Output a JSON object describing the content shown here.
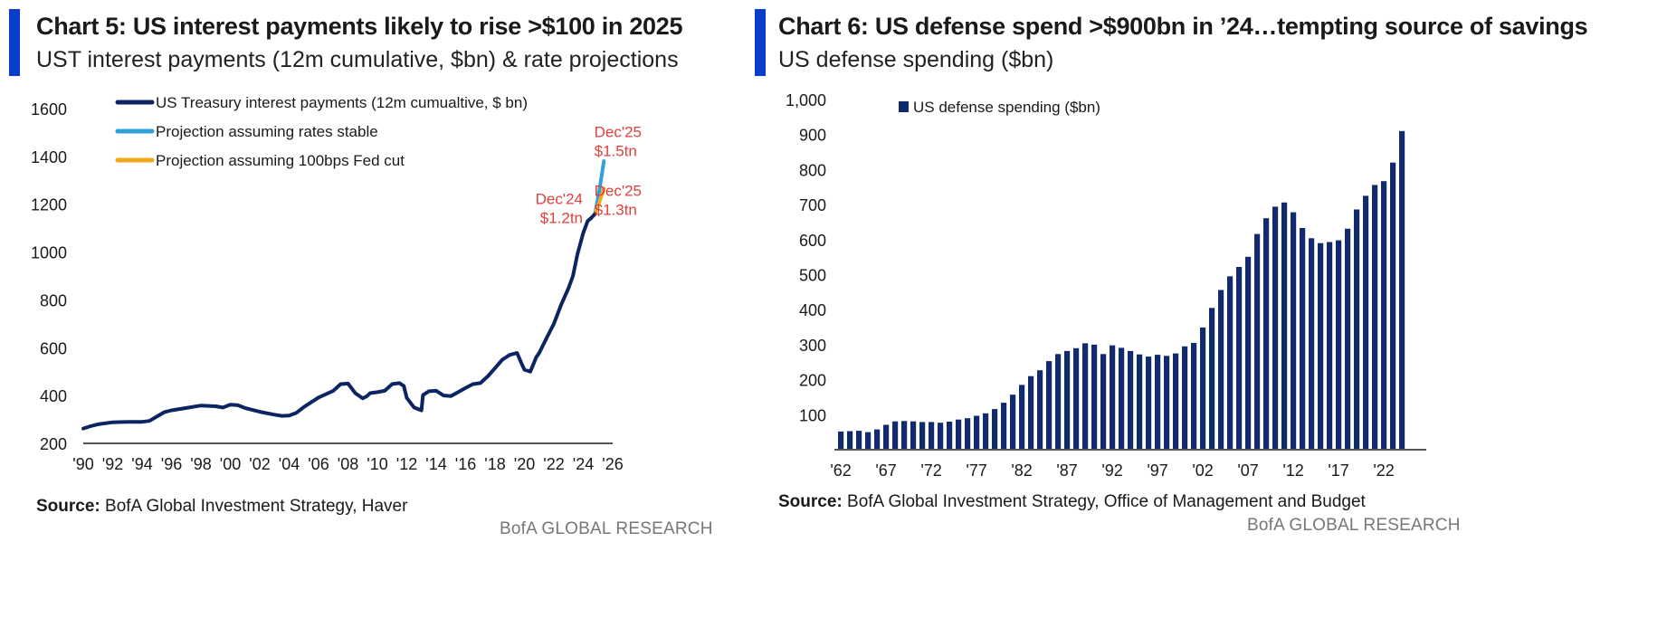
{
  "left": {
    "title": "Chart 5: US interest payments likely to rise >$100 in 2025",
    "subtitle": "UST interest payments (12m cumulative, $bn) & rate projections",
    "source_label": "Source:",
    "source_text": " BofA Global Investment Strategy, Haver",
    "brand": "BofA GLOBAL RESEARCH"
  },
  "right": {
    "title": "Chart 6: US defense spend >$900bn in ’24…tempting source of savings",
    "subtitle": "US defense spending ($bn)",
    "source_label": "Source:",
    "source_text": " BofA Global Investment Strategy, Office of Management and Budget",
    "brand": "BofA GLOBAL RESEARCH"
  },
  "chart_data": [
    {
      "type": "line",
      "ylim": [
        200,
        1600
      ],
      "yticks": [
        200,
        400,
        600,
        800,
        1000,
        1200,
        1400,
        1600
      ],
      "xlim": [
        1990,
        2026
      ],
      "xtick_labels": [
        "'90",
        "'92",
        "'94",
        "'96",
        "'98",
        "'00",
        "'02",
        "'04",
        "'06",
        "'08",
        "'10",
        "'12",
        "'14",
        "'16",
        "'18",
        "'20",
        "'22",
        "'24",
        "'26"
      ],
      "legend_position": "top-left",
      "colors": {
        "actual": "#0c2461",
        "stable": "#2fa1d6",
        "cut": "#f2a81d",
        "annotation": "#e0403a"
      },
      "series": [
        {
          "name": "US Treasury interest payments (12m cumualtive, $ bn)",
          "points": [
            [
              1990,
              262
            ],
            [
              1990.5,
              272
            ],
            [
              1991,
              280
            ],
            [
              1992,
              288
            ],
            [
              1993,
              290
            ],
            [
              1994,
              290
            ],
            [
              1994.5,
              294
            ],
            [
              1995,
              312
            ],
            [
              1995.5,
              330
            ],
            [
              1996,
              338
            ],
            [
              1997,
              348
            ],
            [
              1998,
              358
            ],
            [
              1999,
              355
            ],
            [
              1999.5,
              350
            ],
            [
              2000,
              362
            ],
            [
              2000.5,
              360
            ],
            [
              2001,
              348
            ],
            [
              2002,
              332
            ],
            [
              2003,
              320
            ],
            [
              2003.5,
              315
            ],
            [
              2004,
              316
            ],
            [
              2004.5,
              328
            ],
            [
              2005,
              352
            ],
            [
              2006,
              392
            ],
            [
              2007,
              420
            ],
            [
              2007.5,
              448
            ],
            [
              2008,
              450
            ],
            [
              2008.5,
              410
            ],
            [
              2009,
              388
            ],
            [
              2009.3,
              398
            ],
            [
              2009.5,
              410
            ],
            [
              2010,
              414
            ],
            [
              2010.5,
              420
            ],
            [
              2011,
              448
            ],
            [
              2011.5,
              452
            ],
            [
              2011.8,
              440
            ],
            [
              2012,
              390
            ],
            [
              2012.5,
              350
            ],
            [
              2013,
              338
            ],
            [
              2013.1,
              402
            ],
            [
              2013.5,
              418
            ],
            [
              2014,
              420
            ],
            [
              2014.5,
              400
            ],
            [
              2015,
              398
            ],
            [
              2015.5,
              415
            ],
            [
              2016,
              432
            ],
            [
              2016.5,
              448
            ],
            [
              2017,
              452
            ],
            [
              2017.5,
              480
            ],
            [
              2018,
              515
            ],
            [
              2018.5,
              550
            ],
            [
              2019,
              570
            ],
            [
              2019.5,
              578
            ],
            [
              2019.8,
              535
            ],
            [
              2020,
              508
            ],
            [
              2020.4,
              500
            ],
            [
              2020.8,
              560
            ],
            [
              2021,
              578
            ],
            [
              2021.5,
              640
            ],
            [
              2022,
              700
            ],
            [
              2022.5,
              780
            ],
            [
              2023,
              850
            ],
            [
              2023.3,
              900
            ],
            [
              2023.6,
              990
            ],
            [
              2024,
              1080
            ],
            [
              2024.3,
              1130
            ],
            [
              2024.5,
              1140
            ],
            [
              2024.8,
              1160
            ]
          ]
        },
        {
          "name": "Projection assuming rates stable",
          "points": [
            [
              2024.8,
              1160
            ],
            [
              2025.1,
              1260
            ],
            [
              2025.4,
              1380
            ]
          ]
        },
        {
          "name": "Projection assuming 100bps Fed cut",
          "points": [
            [
              2024.8,
              1160
            ],
            [
              2025.1,
              1210
            ],
            [
              2025.4,
              1265
            ]
          ]
        }
      ],
      "annotations": [
        {
          "lines": [
            "Dec'25",
            "$1.5tn"
          ],
          "x": 2025.3,
          "y": 1480
        },
        {
          "lines": [
            "Dec'25",
            "$1.3tn"
          ],
          "x": 2025.3,
          "y": 1235
        },
        {
          "lines": [
            "Dec'24",
            "$1.2tn"
          ],
          "x": 2023.6,
          "y": 1200
        }
      ]
    },
    {
      "type": "bar",
      "ylim": [
        0,
        1000
      ],
      "yticks": [
        100,
        200,
        300,
        400,
        500,
        600,
        700,
        800,
        900,
        1000
      ],
      "ytick_labels": [
        "100",
        "200",
        "300",
        "400",
        "500",
        "600",
        "700",
        "800",
        "900",
        "1,000"
      ],
      "xtick_labels": [
        "'62",
        "'67",
        "'72",
        "'77",
        "'82",
        "'87",
        "'92",
        "'97",
        "'02",
        "'07",
        "'12",
        "'17",
        "'22"
      ],
      "first_year": 1962,
      "bar_color": "#102a6b",
      "legend_position": "top-left",
      "series": [
        {
          "name": "US defense spending ($bn)",
          "years": [
            1962,
            1963,
            1964,
            1965,
            1966,
            1967,
            1968,
            1969,
            1970,
            1971,
            1972,
            1973,
            1974,
            1975,
            1976,
            1977,
            1978,
            1979,
            1980,
            1981,
            1982,
            1983,
            1984,
            1985,
            1986,
            1987,
            1988,
            1989,
            1990,
            1991,
            1992,
            1993,
            1994,
            1995,
            1996,
            1997,
            1998,
            1999,
            2000,
            2001,
            2002,
            2003,
            2004,
            2005,
            2006,
            2007,
            2008,
            2009,
            2010,
            2011,
            2012,
            2013,
            2014,
            2015,
            2016,
            2017,
            2018,
            2019,
            2020,
            2021,
            2022,
            2023,
            2024
          ],
          "values": [
            52,
            53,
            54,
            50,
            58,
            71,
            81,
            82,
            81,
            79,
            79,
            77,
            80,
            86,
            90,
            97,
            104,
            116,
            134,
            157,
            185,
            210,
            227,
            253,
            273,
            282,
            290,
            304,
            300,
            273,
            298,
            291,
            282,
            272,
            266,
            271,
            268,
            275,
            295,
            305,
            349,
            405,
            456,
            495,
            522,
            551,
            616,
            661,
            694,
            706,
            678,
            633,
            604,
            590,
            593,
            598,
            631,
            686,
            725,
            756,
            767,
            820,
            910
          ]
        }
      ]
    }
  ]
}
